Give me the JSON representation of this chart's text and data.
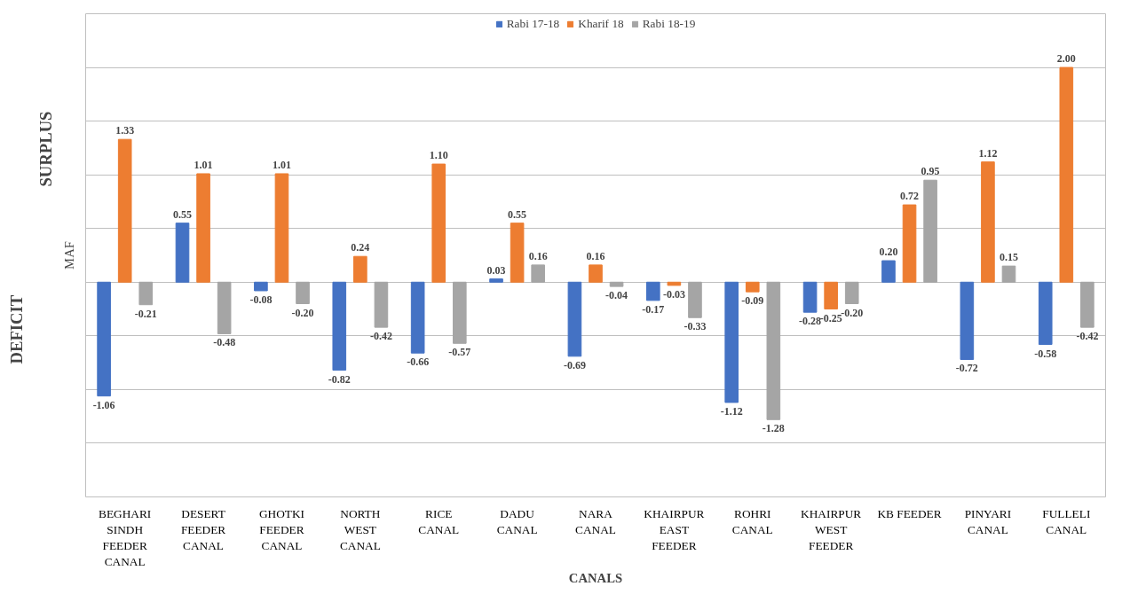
{
  "chart_data": {
    "type": "bar",
    "ylabel": "MAF",
    "xlabel": "CANALS",
    "categories": [
      "BEGHARI SINDH FEEDER CANAL",
      "DESERT FEEDER CANAL",
      "GHOTKI FEEDER CANAL",
      "NORTH WEST CANAL",
      "RICE CANAL",
      "DADU CANAL",
      "NARA CANAL",
      "KHAIRPUR EAST FEEDER",
      "ROHRI CANAL",
      "KHAIRPUR WEST FEEDER",
      "KB FEEDER",
      "PINYARI CANAL",
      "FULLELI CANAL"
    ],
    "series": [
      {
        "name": "Rabi 17-18",
        "color": "#4472c4",
        "values": [
          -1.06,
          0.55,
          -0.08,
          -0.82,
          -0.66,
          0.03,
          -0.69,
          -0.17,
          -1.12,
          -0.28,
          0.2,
          -0.72,
          -0.58
        ],
        "value_labels": [
          "-1.06",
          "0.55",
          "-0.08",
          "-0.82",
          "-0.66",
          "0.03",
          "-0.69",
          "-0.17",
          "-1.12",
          "-0.28",
          "0.20",
          "-0.72",
          "-0.58"
        ]
      },
      {
        "name": "Kharif 18",
        "color": "#ed7d31",
        "values": [
          1.33,
          1.01,
          1.01,
          0.24,
          1.1,
          0.55,
          0.16,
          -0.03,
          -0.09,
          -0.25,
          0.72,
          1.12,
          2.0
        ],
        "value_labels": [
          "1.33",
          "1.01",
          "1.01",
          "0.24",
          "1.10",
          "0.55",
          "0.16",
          "-0.03",
          "-0.09",
          "-0.25",
          "0.72",
          "1.12",
          "2.00"
        ]
      },
      {
        "name": "Rabi 18-19",
        "color": "#a5a5a5",
        "values": [
          -0.21,
          -0.48,
          -0.2,
          -0.42,
          -0.57,
          0.16,
          -0.04,
          -0.33,
          -1.28,
          -0.2,
          0.95,
          0.15,
          -0.42
        ],
        "value_labels": [
          "-0.21",
          "-0.48",
          "-0.20",
          "-0.42",
          "-0.57",
          "0.16",
          "-0.04",
          "-0.33",
          "-1.28",
          "-0.20",
          "0.95",
          "0.15",
          "-0.42"
        ]
      }
    ],
    "ylim": [
      -2,
      2.5
    ],
    "yticks": [
      {
        "value": -2,
        "label": null
      },
      {
        "value": -1.5,
        "label": null
      },
      {
        "value": -1,
        "label": null
      },
      {
        "value": -0.5,
        "label": null
      },
      {
        "value": 0,
        "label": null
      },
      {
        "value": 0.5,
        "label": null
      },
      {
        "value": 1,
        "label": null
      },
      {
        "value": 1.5,
        "label": null
      },
      {
        "value": 2,
        "label": null
      },
      {
        "value": 2.5,
        "label": null
      }
    ],
    "annotations": [
      "SURPLUS",
      "DEFICIT"
    ],
    "tick_labels": "x",
    "grid": "y",
    "legend": "top"
  }
}
